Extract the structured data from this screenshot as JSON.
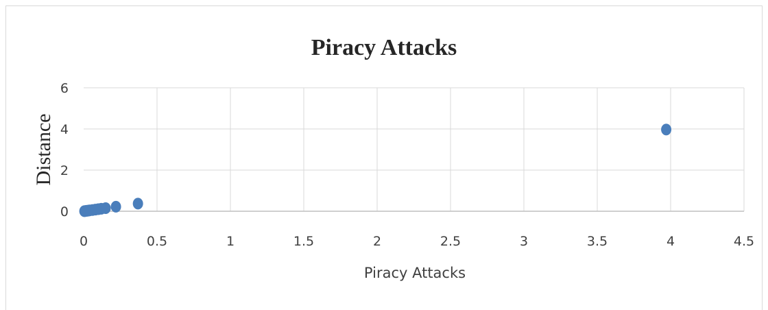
{
  "chart_data": {
    "type": "scatter",
    "title": "Piracy Attacks",
    "xlabel": "Piracy Attacks",
    "ylabel": "Distance",
    "xlim": [
      0,
      4.5
    ],
    "ylim": [
      0,
      6
    ],
    "x_ticks": [
      "0",
      "0.5",
      "1",
      "1.5",
      "2",
      "2.5",
      "3",
      "3.5",
      "4",
      "4.5"
    ],
    "y_ticks": [
      "0",
      "2",
      "4",
      "6"
    ],
    "grid": true,
    "legend": "none",
    "marker_color": "#4a7ebb",
    "series": [
      {
        "points": [
          {
            "x": 0.005,
            "y": 0.005
          },
          {
            "x": 0.01,
            "y": 0.01
          },
          {
            "x": 0.02,
            "y": 0.02
          },
          {
            "x": 0.03,
            "y": 0.03
          },
          {
            "x": 0.04,
            "y": 0.04
          },
          {
            "x": 0.06,
            "y": 0.06
          },
          {
            "x": 0.08,
            "y": 0.08
          },
          {
            "x": 0.1,
            "y": 0.1
          },
          {
            "x": 0.12,
            "y": 0.12
          },
          {
            "x": 0.15,
            "y": 0.15
          },
          {
            "x": 0.22,
            "y": 0.22
          },
          {
            "x": 0.37,
            "y": 0.37
          },
          {
            "x": 3.97,
            "y": 3.97
          }
        ]
      }
    ]
  }
}
